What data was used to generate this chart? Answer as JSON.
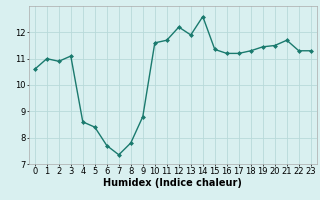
{
  "x": [
    0,
    1,
    2,
    3,
    4,
    5,
    6,
    7,
    8,
    9,
    10,
    11,
    12,
    13,
    14,
    15,
    16,
    17,
    18,
    19,
    20,
    21,
    22,
    23
  ],
  "y": [
    10.6,
    11.0,
    10.9,
    11.1,
    8.6,
    8.4,
    7.7,
    7.35,
    7.8,
    8.8,
    11.6,
    11.7,
    12.2,
    11.9,
    12.6,
    11.35,
    11.2,
    11.2,
    11.3,
    11.45,
    11.5,
    11.7,
    11.3,
    11.3
  ],
  "line_color": "#1a7a6e",
  "marker": "D",
  "marker_size": 2,
  "bg_color": "#d9f0f0",
  "grid_color": "#b8dada",
  "xlabel": "Humidex (Indice chaleur)",
  "ylim": [
    7,
    13
  ],
  "xlim": [
    -0.5,
    23.5
  ],
  "yticks": [
    7,
    8,
    9,
    10,
    11,
    12
  ],
  "xticks": [
    0,
    1,
    2,
    3,
    4,
    5,
    6,
    7,
    8,
    9,
    10,
    11,
    12,
    13,
    14,
    15,
    16,
    17,
    18,
    19,
    20,
    21,
    22,
    23
  ],
  "tick_fontsize": 6,
  "xlabel_fontsize": 7,
  "line_width": 1.0
}
